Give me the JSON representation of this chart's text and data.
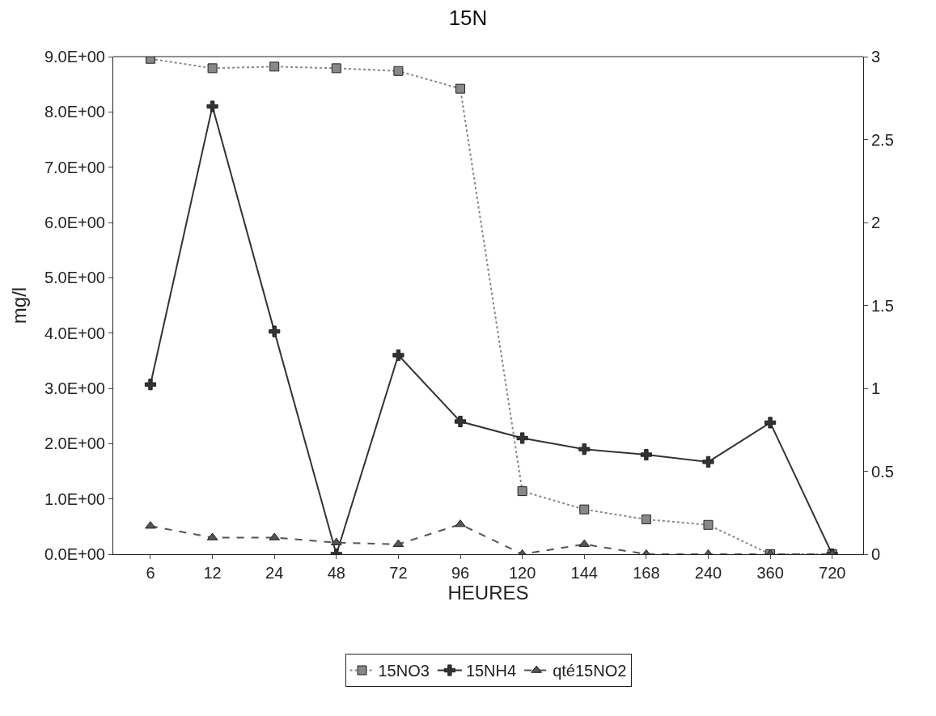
{
  "chart_data": {
    "type": "line",
    "title": "15N",
    "xlabel": "HEURES",
    "ylabel": "mg/l",
    "categories": [
      "6",
      "12",
      "24",
      "48",
      "72",
      "96",
      "120",
      "144",
      "168",
      "240",
      "360",
      "720"
    ],
    "series": [
      {
        "name": "15NO3",
        "color": "#888888",
        "marker": "square",
        "line_style": "dotted",
        "values": [
          8.96,
          8.79,
          8.82,
          8.79,
          8.74,
          8.42,
          1.14,
          0.81,
          0.63,
          0.53,
          0,
          0
        ]
      },
      {
        "name": "15NH4",
        "color": "#333333",
        "marker": "cross",
        "line_style": "solid",
        "values": [
          3.07,
          8.1,
          4.03,
          0,
          3.6,
          2.4,
          2.1,
          1.9,
          1.8,
          1.67,
          2.38,
          0
        ]
      },
      {
        "name": "qté15NO2",
        "color": "#555555",
        "marker": "triangle",
        "line_style": "dashed",
        "axis": "y2",
        "values": [
          0.17,
          0.1,
          0.1,
          0.07,
          0.06,
          0.18,
          0,
          0.06,
          0,
          0,
          0,
          0
        ]
      }
    ],
    "ylim": [
      0,
      9
    ],
    "yticks": [
      {
        "value": 0,
        "label": "0.0E+00"
      },
      {
        "value": 1,
        "label": "1.0E+00"
      },
      {
        "value": 2,
        "label": "2.0E+00"
      },
      {
        "value": 3,
        "label": "3.0E+00"
      },
      {
        "value": 4,
        "label": "4.0E+00"
      },
      {
        "value": 5,
        "label": "5.0E+00"
      },
      {
        "value": 6,
        "label": "6.0E+00"
      },
      {
        "value": 7,
        "label": "7.0E+00"
      },
      {
        "value": 8,
        "label": "8.0E+00"
      },
      {
        "value": 9,
        "label": "9.0E+00"
      }
    ],
    "y2lim": [
      0,
      3
    ],
    "y2ticks": [
      0,
      0.5,
      1,
      1.5,
      2,
      2.5,
      3
    ],
    "legend": "bottom"
  }
}
